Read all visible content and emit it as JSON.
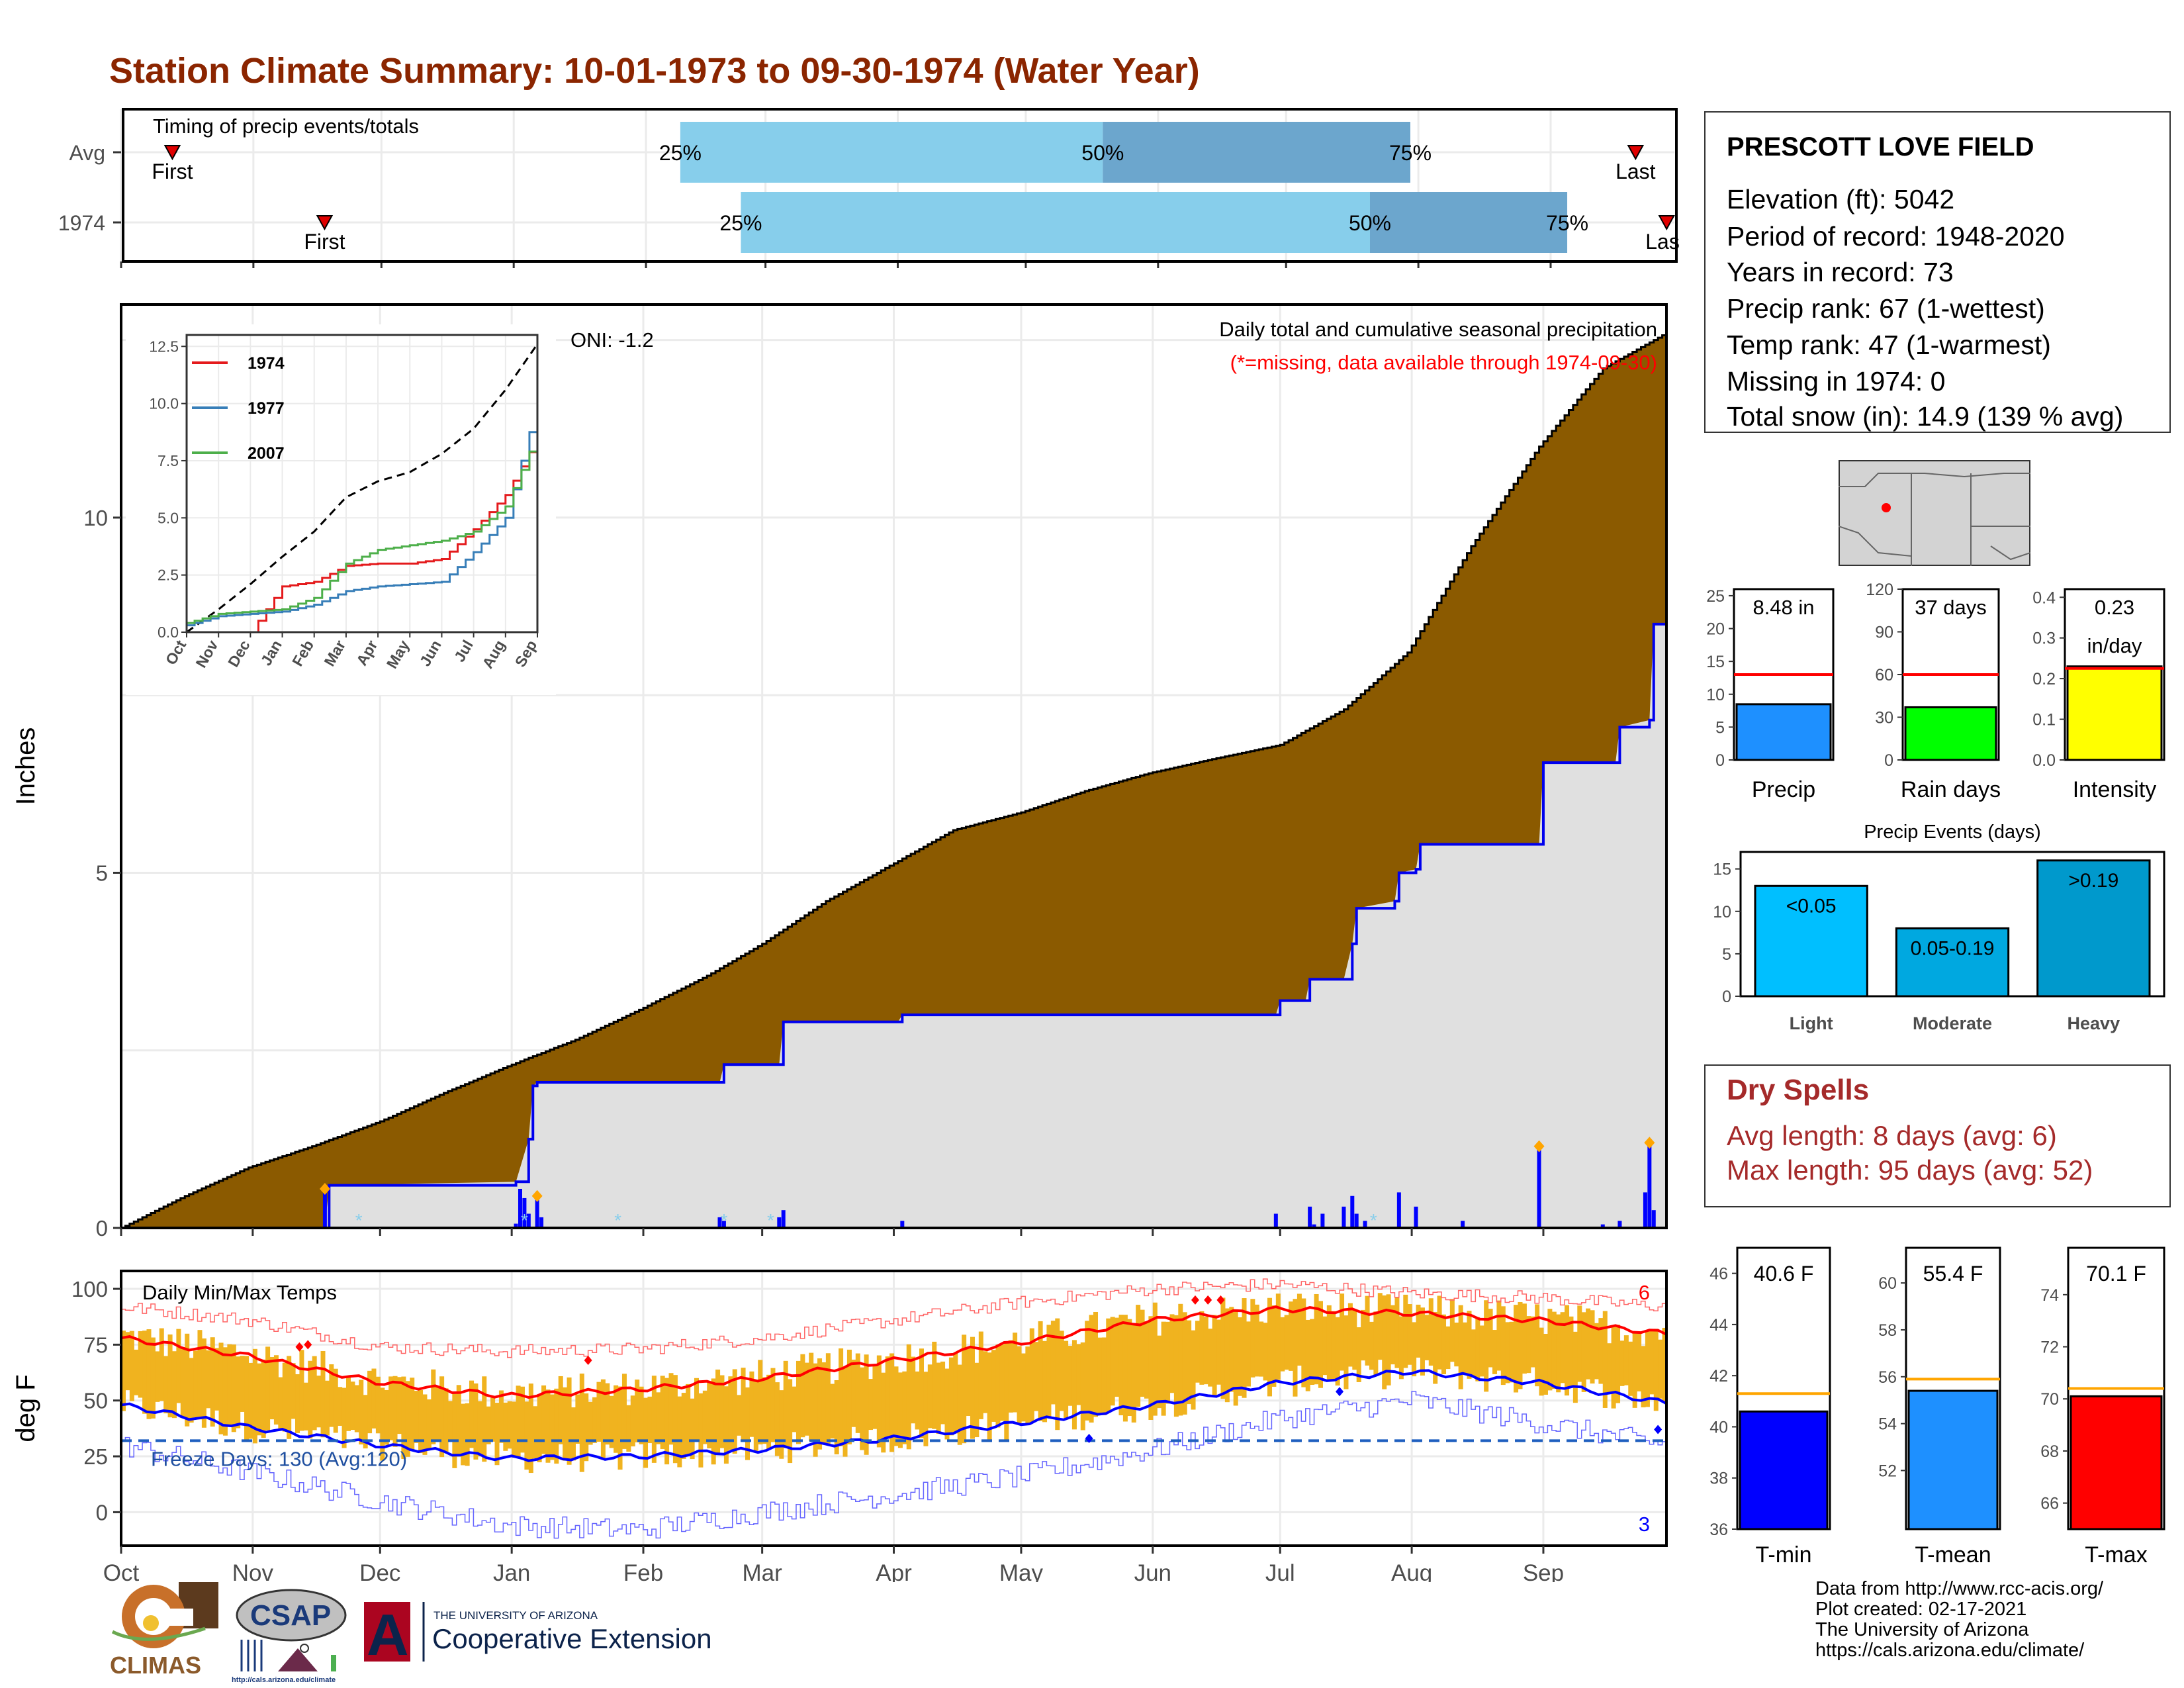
{
  "title": "Station Climate Summary: 10-01-1973 to 09-30-1974 (Water Year)",
  "colors": {
    "title": "#8b2500",
    "precip_fill": "#8b5a00",
    "obs_line": "#0000ee",
    "gray_fill": "#e0e0e0",
    "timing_light": "#87ceeb",
    "timing_dark": "#6ca6cd",
    "temp_bar": "#f0b31f",
    "tmax_avg": "#ff0000",
    "tmin_avg": "#0000ff",
    "freeze_line": "#1f5fbf"
  },
  "timing": {
    "title": "Timing of precip events/totals",
    "rows": [
      {
        "label": "Avg",
        "first": "First",
        "last": "Last",
        "first_frac": 0.033,
        "p25_frac": 0.36,
        "p50_frac": 0.632,
        "p75_frac": 0.83,
        "last_frac": 0.975
      },
      {
        "label": "1974",
        "first": "First",
        "last": "Las",
        "first_frac": 0.131,
        "p25_frac": 0.399,
        "p50_frac": 0.804,
        "p75_frac": 0.931,
        "last_frac": 0.995
      }
    ],
    "p25": "25%",
    "p50": "50%",
    "p75": "75%"
  },
  "precip_panel": {
    "ylabel": "Inches",
    "yticks": [
      "0",
      "5",
      "10"
    ],
    "oni": "ONI: -1.2",
    "legend_line1": "Daily total and cumulative seasonal precipitation",
    "legend_line2": "(*=missing, data available through 1974-09-30)",
    "avg_cum_days": [
      0,
      15,
      30,
      45,
      61,
      76,
      92,
      107,
      123,
      138,
      151,
      166,
      181,
      196,
      212,
      227,
      242,
      257,
      273,
      288,
      303,
      318,
      334,
      349,
      364
    ],
    "avg_cum_vals": [
      0.0,
      0.45,
      0.85,
      1.15,
      1.5,
      1.9,
      2.3,
      2.65,
      3.1,
      3.55,
      4.0,
      4.6,
      5.1,
      5.6,
      5.85,
      6.15,
      6.4,
      6.6,
      6.8,
      7.3,
      8.1,
      9.6,
      11.0,
      12.1,
      12.6
    ],
    "obs_cum_days": [
      0,
      48,
      49,
      93,
      96,
      97,
      98,
      141,
      142,
      155,
      156,
      183,
      184,
      272,
      273,
      279,
      280,
      288,
      290,
      291,
      300,
      301,
      305,
      306,
      334,
      335,
      352,
      353,
      360,
      361,
      364
    ],
    "obs_cum_vals": [
      0,
      0,
      0.6,
      0.65,
      1.25,
      2.0,
      2.05,
      2.05,
      2.3,
      2.3,
      2.9,
      2.9,
      3.0,
      3.0,
      3.2,
      3.2,
      3.5,
      3.5,
      4.0,
      4.5,
      4.6,
      5.0,
      5.05,
      5.4,
      5.4,
      6.55,
      6.55,
      7.05,
      7.15,
      8.5,
      8.5
    ],
    "daily_days": [
      48,
      93,
      94,
      95,
      96,
      98,
      99,
      141,
      142,
      155,
      156,
      184,
      272,
      280,
      281,
      283,
      288,
      290,
      291,
      293,
      301,
      305,
      316,
      334,
      349,
      353,
      359,
      360,
      361
    ],
    "daily_vals": [
      0.55,
      0.06,
      0.55,
      0.42,
      0.2,
      0.45,
      0.15,
      0.15,
      0.1,
      0.15,
      0.25,
      0.1,
      0.2,
      0.3,
      0.05,
      0.2,
      0.3,
      0.45,
      0.2,
      0.1,
      0.5,
      0.3,
      0.1,
      1.15,
      0.05,
      0.1,
      0.5,
      1.2,
      0.25
    ],
    "snow_days": [
      56,
      95,
      117,
      142,
      153,
      295
    ],
    "xlim": [
      0,
      364
    ],
    "ylim": [
      0,
      13.0
    ]
  },
  "inset": {
    "yticks": [
      "0.0",
      "2.5",
      "5.0",
      "7.5",
      "10.0",
      "12.5"
    ],
    "months": [
      "Oct",
      "Nov",
      "Dec",
      "Jan",
      "Feb",
      "Mar",
      "Apr",
      "May",
      "Jun",
      "Jul",
      "Aug",
      "Sep"
    ],
    "series": [
      {
        "name": "1974",
        "color": "#e41a1c",
        "vals": [
          0.0,
          0.0,
          0.0,
          2.0,
          2.2,
          2.9,
          3.0,
          3.0,
          3.2,
          4.5,
          6.0,
          8.5
        ]
      },
      {
        "name": "1977",
        "color": "#377eb8",
        "vals": [
          0.3,
          0.7,
          0.8,
          0.9,
          1.2,
          1.8,
          2.0,
          2.1,
          2.2,
          3.5,
          5.0,
          10.0
        ]
      },
      {
        "name": "2007",
        "color": "#4daf4a",
        "vals": [
          0.4,
          0.8,
          0.9,
          1.0,
          1.5,
          3.0,
          3.6,
          3.8,
          4.0,
          4.4,
          5.5,
          8.7
        ]
      }
    ],
    "avg_vals": [
      0.0,
      1.0,
      2.1,
      3.3,
      4.4,
      5.9,
      6.6,
      7.0,
      7.8,
      8.9,
      10.6,
      12.6
    ],
    "ylim": [
      0,
      13
    ]
  },
  "temp_panel": {
    "title": "Daily Min/Max Temps",
    "ylabel": "deg F",
    "yticks": [
      "0",
      "25",
      "50",
      "75",
      "100"
    ],
    "freeze_label": "Freeze Days: 130 (Avg:120)",
    "freeze_line": 32,
    "tmax_record_count": "6",
    "tmin_record_count": "3",
    "tmax_avg_months": [
      0,
      30,
      61,
      91,
      122,
      151,
      182,
      212,
      243,
      273,
      304,
      334,
      364
    ],
    "tmax_avg_vals": [
      78,
      70,
      58,
      52,
      55,
      60,
      68,
      76,
      86,
      91,
      89,
      86,
      80
    ],
    "tmin_avg_vals": [
      48,
      38,
      30,
      24,
      25,
      28,
      33,
      40,
      48,
      58,
      63,
      58,
      49
    ],
    "tmax_extreme_vals": [
      92,
      86,
      74,
      72,
      73,
      78,
      86,
      94,
      100,
      102,
      98,
      96,
      92
    ],
    "tmin_extreme_vals": [
      30,
      18,
      5,
      -6,
      -8,
      0,
      8,
      16,
      28,
      42,
      50,
      40,
      30
    ],
    "ylim": [
      -15,
      108
    ],
    "xlim": [
      0,
      364
    ]
  },
  "months_axis": [
    "Oct",
    "Nov",
    "Dec",
    "Jan",
    "Feb",
    "Mar",
    "Apr",
    "May",
    "Jun",
    "Jul",
    "Aug",
    "Sep"
  ],
  "month_start_days": [
    0,
    31,
    61,
    92,
    123,
    151,
    182,
    212,
    243,
    273,
    304,
    335
  ],
  "station": {
    "name": "PRESCOTT LOVE FIELD",
    "elevation": "Elevation (ft): 5042",
    "period": "Period of record: 1948-2020",
    "years": "Years in record: 73",
    "precip_rank": "Precip rank: 67 (1-wettest)",
    "temp_rank": "Temp rank: 47 (1-warmest)",
    "missing": "Missing in 1974: 0",
    "snow": "Total snow (in): 14.9 (139 % avg)"
  },
  "summary_bars": [
    {
      "label": "Precip",
      "value_text": "8.48 in",
      "value": 8.48,
      "avg": 13.0,
      "ymax": 26,
      "ticks": [
        "0",
        "5",
        "10",
        "15",
        "20",
        "25"
      ],
      "tickvals": [
        0,
        5,
        10,
        15,
        20,
        25
      ],
      "color": "#1e90ff"
    },
    {
      "label": "Rain days",
      "value_text": "37 days",
      "value": 37,
      "avg": 60,
      "ymax": 120,
      "ticks": [
        "0",
        "30",
        "60",
        "90",
        "120"
      ],
      "tickvals": [
        0,
        30,
        60,
        90,
        120
      ],
      "color": "#00ff00"
    },
    {
      "label": "Intensity",
      "value_text": "0.23",
      "value_text2": "in/day",
      "value": 0.23,
      "avg": 0.225,
      "ymax": 0.42,
      "ticks": [
        "0.0",
        "0.1",
        "0.2",
        "0.3",
        "0.4"
      ],
      "tickvals": [
        0,
        0.1,
        0.2,
        0.3,
        0.4
      ],
      "color": "#ffff00"
    }
  ],
  "events": {
    "title": "Precip Events (days)",
    "bars": [
      {
        "cat": "Light",
        "label": "<0.05",
        "value": 13,
        "color": "#00bfff"
      },
      {
        "cat": "Moderate",
        "label": "0.05-0.19",
        "value": 8,
        "color": "#00a8e0"
      },
      {
        "cat": "Heavy",
        "label": ">0.19",
        "value": 16,
        "color": "#0099cc"
      }
    ],
    "ticks": [
      "0",
      "5",
      "10",
      "15"
    ],
    "tickvals": [
      0,
      5,
      10,
      15
    ],
    "ymax": 17
  },
  "dry_spells": {
    "title": "Dry Spells",
    "avg": "Avg length: 8 days (avg: 6)",
    "max": "Max length: 95 days (avg: 52)"
  },
  "temp_bars": [
    {
      "label": "T-min",
      "value_text": "40.6 F",
      "value": 40.6,
      "avg": 41.3,
      "ymin": 36,
      "ymax": 47,
      "ticks": [
        "36",
        "38",
        "40",
        "42",
        "44",
        "46"
      ],
      "tickvals": [
        36,
        38,
        40,
        42,
        44,
        46
      ],
      "color": "#0000ff"
    },
    {
      "label": "T-mean",
      "value_text": "55.4 F",
      "value": 55.4,
      "avg": 55.9,
      "ymin": 49.5,
      "ymax": 61.5,
      "ticks": [
        "52",
        "54",
        "56",
        "58",
        "60"
      ],
      "tickvals": [
        52,
        54,
        56,
        58,
        60
      ],
      "color": "#1e90ff"
    },
    {
      "label": "T-max",
      "value_text": "70.1 F",
      "value": 70.1,
      "avg": 70.4,
      "ymin": 65,
      "ymax": 75.8,
      "ticks": [
        "66",
        "68",
        "70",
        "72",
        "74"
      ],
      "tickvals": [
        66,
        68,
        70,
        72,
        74
      ],
      "color": "#ff0000"
    }
  ],
  "footer": {
    "line1": "Data from http://www.rcc-acis.org/",
    "line2": "Plot created: 02-17-2021",
    "line3": "The University of Arizona",
    "line4": "https://cals.arizona.edu/climate/"
  },
  "logos": {
    "climas": "CLIMAS",
    "csap": "CSAP",
    "csap_url": "http://cals.arizona.edu/climate",
    "ua_small": "THE UNIVERSITY OF ARIZONA",
    "ua_big": "Cooperative Extension",
    "ua_letter": "A"
  }
}
